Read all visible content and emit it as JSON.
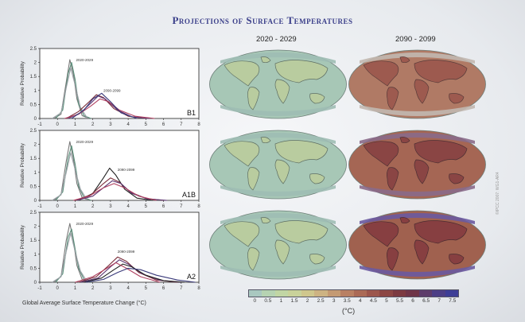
{
  "slide": {
    "title": "Projections of Surface Temperatures",
    "periods": [
      "2020 - 2029",
      "2090 - 2099"
    ],
    "x_axis_title": "Global Average Surface Temperature Change (°C)",
    "y_axis_title": "Relative Probability",
    "colorbar_unit": "(°C)",
    "colorbar_ticks": [
      "0",
      "0.5",
      "1",
      "1.5",
      "2",
      "2.5",
      "3",
      "3.5",
      "4",
      "4.5",
      "5",
      "5.5",
      "6",
      "6.5",
      "7",
      "7.5"
    ],
    "colorbar_colors": [
      "#a9c8c0",
      "#b6d3b2",
      "#c1d6a4",
      "#c9d29a",
      "#cfc78d",
      "#cdb382",
      "#c49a73",
      "#b98063",
      "#ab6a56",
      "#9c564c",
      "#8c4644",
      "#7c3a41",
      "#6f3548",
      "#5d3d6b",
      "#4c3f86",
      "#3d3e96"
    ],
    "credit": "©IPCC 2007: WG1-AR4"
  },
  "chart_data": [
    {
      "type": "line",
      "scenario": "B1",
      "xlabel": "Global Average Surface Temperature Change (°C)",
      "ylabel": "Relative Probability",
      "xlim": [
        -1,
        8
      ],
      "ylim": [
        0,
        2.5
      ],
      "xticks": [
        "-1",
        "0",
        "1",
        "2",
        "3",
        "4",
        "5",
        "6",
        "7",
        "8"
      ],
      "yticks": [
        "0",
        "0.5",
        "1",
        "1.5",
        "2",
        "2.5"
      ],
      "annotations": [
        "2020-2029",
        "2090-2099"
      ],
      "series": [
        {
          "color": "#777777",
          "x": [
            -0.2,
            0.2,
            0.5,
            0.7,
            0.9,
            1.1,
            1.4,
            1.8
          ],
          "y": [
            0,
            0.15,
            1.3,
            2.1,
            1.6,
            0.7,
            0.1,
            0
          ]
        },
        {
          "color": "#5a8f7a",
          "x": [
            -0.1,
            0.3,
            0.6,
            0.8,
            1.0,
            1.2,
            1.5,
            1.9
          ],
          "y": [
            0,
            0.3,
            1.6,
            2.0,
            1.4,
            0.5,
            0.1,
            0
          ]
        },
        {
          "color": "#9aa0a6",
          "x": [
            -0.3,
            0.2,
            0.5,
            0.75,
            1.0,
            1.3,
            1.7
          ],
          "y": [
            0,
            0.2,
            1.1,
            1.8,
            1.2,
            0.4,
            0
          ]
        },
        {
          "color": "#7a2d3a",
          "x": [
            0.5,
            1.2,
            1.8,
            2.2,
            2.6,
            3.2,
            4.0,
            5.0
          ],
          "y": [
            0,
            0.25,
            0.6,
            0.85,
            0.75,
            0.35,
            0.08,
            0
          ]
        },
        {
          "color": "#5b3470",
          "x": [
            0.6,
            1.3,
            1.9,
            2.3,
            2.7,
            3.4,
            4.2,
            5.2
          ],
          "y": [
            0,
            0.2,
            0.55,
            0.8,
            0.7,
            0.3,
            0.06,
            0
          ]
        },
        {
          "color": "#b04060",
          "x": [
            0.4,
            1.2,
            1.9,
            2.4,
            2.9,
            3.5,
            4.4,
            5.5
          ],
          "y": [
            0,
            0.15,
            0.45,
            0.7,
            0.6,
            0.3,
            0.08,
            0
          ]
        },
        {
          "color": "#3a3a7a",
          "x": [
            0.8,
            1.5,
            2.0,
            2.5,
            3.0,
            3.6,
            4.5
          ],
          "y": [
            0,
            0.3,
            0.7,
            0.9,
            0.6,
            0.2,
            0
          ]
        }
      ]
    },
    {
      "type": "line",
      "scenario": "A1B",
      "xlabel": "Global Average Surface Temperature Change (°C)",
      "ylabel": "Relative Probability",
      "xlim": [
        -1,
        8
      ],
      "ylim": [
        0,
        2.5
      ],
      "xticks": [
        "-1",
        "0",
        "1",
        "2",
        "3",
        "4",
        "5",
        "6",
        "7",
        "8"
      ],
      "yticks": [
        "0",
        "0.5",
        "1",
        "1.5",
        "2",
        "2.5"
      ],
      "annotations": [
        "2020-2029",
        "2090-2099"
      ],
      "series": [
        {
          "color": "#777777",
          "x": [
            -0.2,
            0.2,
            0.5,
            0.7,
            0.9,
            1.1,
            1.4,
            1.8
          ],
          "y": [
            0,
            0.2,
            1.4,
            2.1,
            1.5,
            0.6,
            0.1,
            0
          ]
        },
        {
          "color": "#5a8f7a",
          "x": [
            -0.1,
            0.3,
            0.6,
            0.8,
            1.0,
            1.2,
            1.5,
            1.9
          ],
          "y": [
            0,
            0.3,
            1.5,
            1.95,
            1.3,
            0.5,
            0.1,
            0
          ]
        },
        {
          "color": "#9aa0a6",
          "x": [
            -0.3,
            0.2,
            0.5,
            0.75,
            1.0,
            1.3,
            1.7
          ],
          "y": [
            0,
            0.2,
            1.0,
            1.7,
            1.1,
            0.4,
            0
          ]
        },
        {
          "color": "#222222",
          "x": [
            1.2,
            2.0,
            2.6,
            2.95,
            3.3,
            3.8,
            4.5,
            5.4
          ],
          "y": [
            0,
            0.25,
            0.8,
            1.15,
            0.9,
            0.4,
            0.08,
            0
          ]
        },
        {
          "color": "#7a2d3a",
          "x": [
            1.0,
            1.9,
            2.6,
            3.0,
            3.5,
            4.1,
            5.0,
            6.0
          ],
          "y": [
            0,
            0.2,
            0.6,
            0.8,
            0.65,
            0.3,
            0.07,
            0
          ]
        },
        {
          "color": "#5b3470",
          "x": [
            1.1,
            2.0,
            2.7,
            3.1,
            3.6,
            4.2,
            5.1,
            6.2
          ],
          "y": [
            0,
            0.15,
            0.5,
            0.7,
            0.6,
            0.25,
            0.05,
            0
          ]
        },
        {
          "color": "#b04060",
          "x": [
            0.9,
            1.8,
            2.6,
            3.2,
            3.8,
            4.6,
            5.6
          ],
          "y": [
            0,
            0.15,
            0.45,
            0.6,
            0.45,
            0.15,
            0
          ]
        }
      ]
    },
    {
      "type": "line",
      "scenario": "A2",
      "xlabel": "Global Average Surface Temperature Change (°C)",
      "ylabel": "Relative Probability",
      "xlim": [
        -1,
        8
      ],
      "ylim": [
        0,
        2.5
      ],
      "xticks": [
        "-1",
        "0",
        "1",
        "2",
        "3",
        "4",
        "5",
        "6",
        "7",
        "8"
      ],
      "yticks": [
        "0",
        "0.5",
        "1",
        "1.5",
        "2",
        "2.5"
      ],
      "annotations": [
        "2020-2029",
        "2090-2099"
      ],
      "series": [
        {
          "color": "#777777",
          "x": [
            -0.2,
            0.2,
            0.5,
            0.7,
            0.9,
            1.1,
            1.4,
            1.8
          ],
          "y": [
            0,
            0.2,
            1.5,
            2.1,
            1.5,
            0.6,
            0.1,
            0
          ]
        },
        {
          "color": "#5a8f7a",
          "x": [
            -0.1,
            0.3,
            0.6,
            0.8,
            1.0,
            1.2,
            1.5,
            1.9
          ],
          "y": [
            0,
            0.3,
            1.6,
            1.9,
            1.2,
            0.5,
            0.1,
            0
          ]
        },
        {
          "color": "#9aa0a6",
          "x": [
            -0.3,
            0.2,
            0.5,
            0.75,
            1.0,
            1.3,
            1.7
          ],
          "y": [
            0,
            0.2,
            1.1,
            1.75,
            1.1,
            0.4,
            0
          ]
        },
        {
          "color": "#7a2d3a",
          "x": [
            1.2,
            2.2,
            2.9,
            3.4,
            3.9,
            4.6,
            5.6,
            6.8
          ],
          "y": [
            0,
            0.2,
            0.6,
            0.9,
            0.75,
            0.35,
            0.08,
            0
          ]
        },
        {
          "color": "#5b3470",
          "x": [
            1.3,
            2.3,
            3.0,
            3.5,
            4.0,
            4.8,
            5.8,
            7.0
          ],
          "y": [
            0,
            0.15,
            0.55,
            0.8,
            0.65,
            0.3,
            0.07,
            0
          ]
        },
        {
          "color": "#222222",
          "x": [
            1.5,
            2.5,
            3.2,
            3.7,
            4.2,
            5.0,
            6.0,
            7.2
          ],
          "y": [
            0,
            0.15,
            0.45,
            0.65,
            0.55,
            0.25,
            0.06,
            0
          ]
        },
        {
          "color": "#b04060",
          "x": [
            1.0,
            2.0,
            2.8,
            3.3,
            3.9,
            4.7,
            5.8
          ],
          "y": [
            0,
            0.2,
            0.5,
            0.7,
            0.5,
            0.2,
            0
          ]
        },
        {
          "color": "#3a3a7a",
          "x": [
            1.6,
            2.6,
            3.4,
            4.0,
            4.7,
            5.6,
            6.8,
            7.8
          ],
          "y": [
            0,
            0.1,
            0.35,
            0.5,
            0.45,
            0.25,
            0.08,
            0
          ]
        }
      ]
    }
  ]
}
